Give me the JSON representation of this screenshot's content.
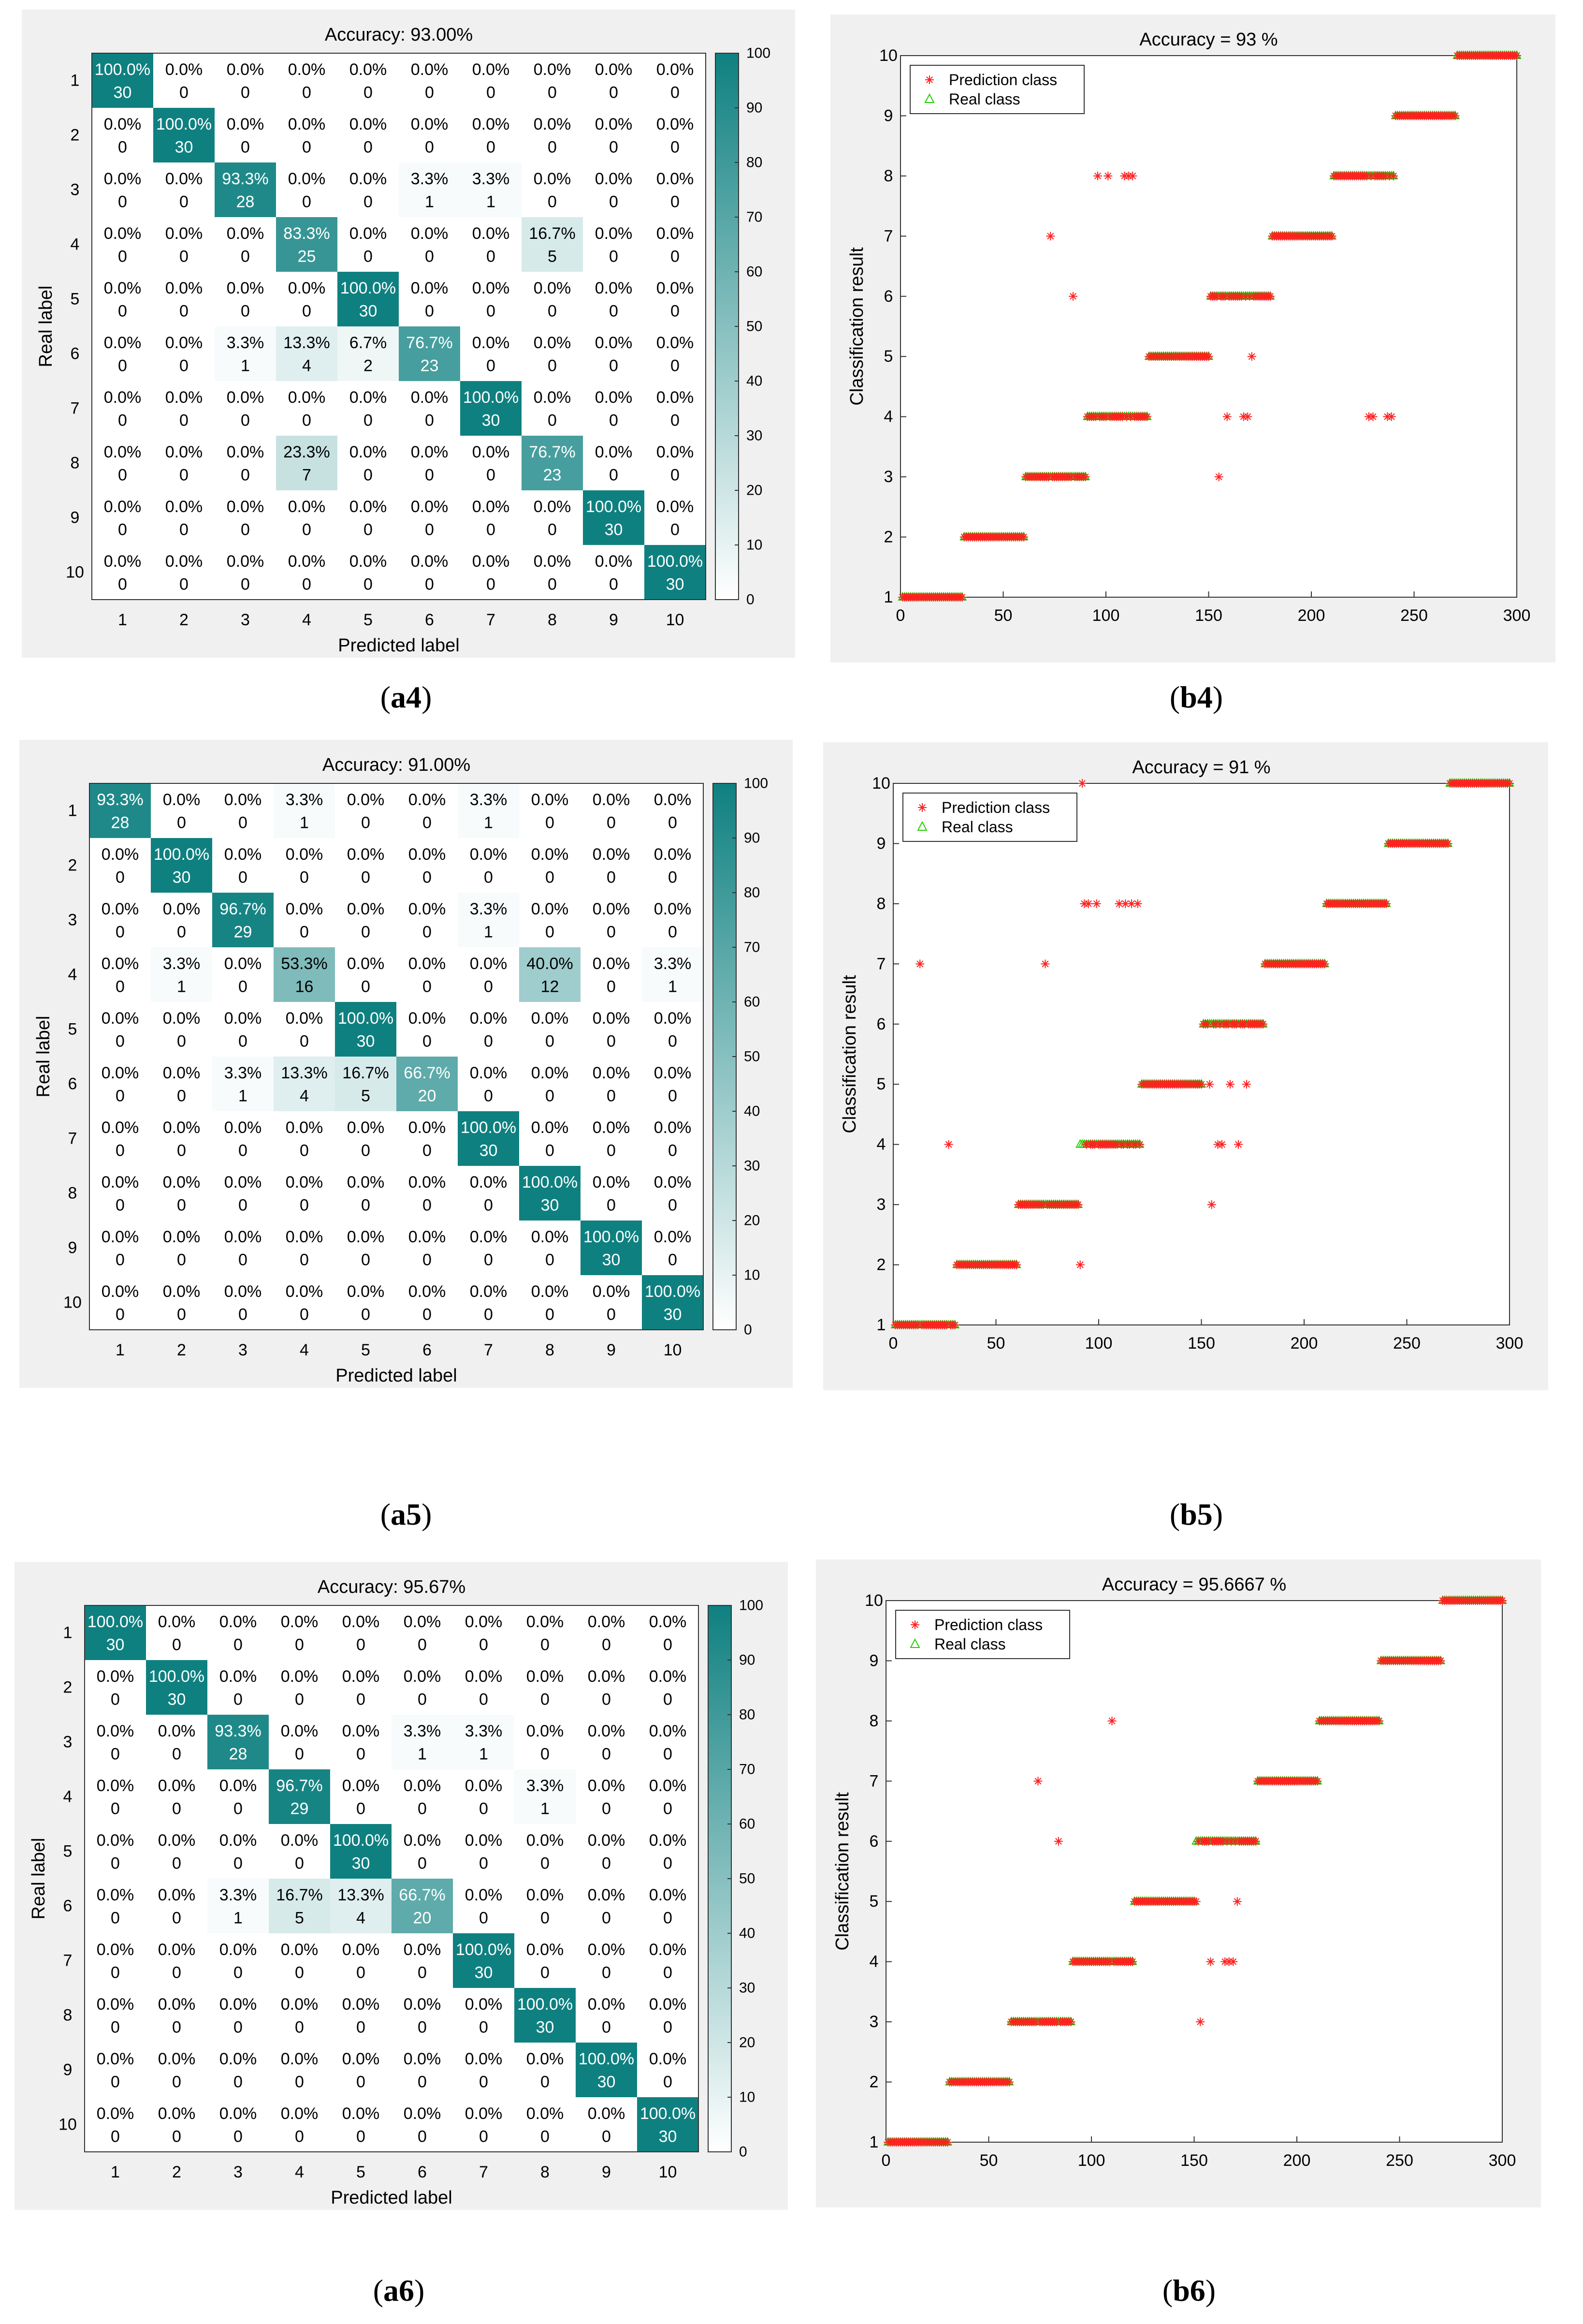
{
  "colors": {
    "cm_max": "#0f8080",
    "cm_min": "#ffffff",
    "panel_bg": "#f0f0f0",
    "pred": "#ff2020",
    "real": "#22cc00"
  },
  "common": {
    "cm_class_labels": [
      "1",
      "2",
      "3",
      "4",
      "5",
      "6",
      "7",
      "8",
      "9",
      "10"
    ],
    "cm_xlabel": "Predicted label",
    "cm_ylabel": "Real label",
    "cm_colorbar_ticks": [
      0,
      10,
      20,
      30,
      40,
      50,
      60,
      70,
      80,
      90,
      100
    ],
    "sc_ylabel": "Classification result",
    "sc_xticks": [
      0,
      50,
      100,
      150,
      200,
      250,
      300
    ],
    "sc_yticks": [
      1,
      2,
      3,
      4,
      5,
      6,
      7,
      8,
      9,
      10
    ],
    "sc_legend": [
      "Prediction class",
      "Real class"
    ]
  },
  "chart_data": [
    {
      "id": "a4",
      "type": "heatmap",
      "caption": "a4",
      "title": "Accuracy: 93.00%",
      "xlabel": "Predicted label",
      "ylabel": "Real label",
      "clim": [
        0,
        100
      ],
      "counts": [
        [
          30,
          0,
          0,
          0,
          0,
          0,
          0,
          0,
          0,
          0
        ],
        [
          0,
          30,
          0,
          0,
          0,
          0,
          0,
          0,
          0,
          0
        ],
        [
          0,
          0,
          28,
          0,
          0,
          1,
          1,
          0,
          0,
          0
        ],
        [
          0,
          0,
          0,
          25,
          0,
          0,
          0,
          5,
          0,
          0
        ],
        [
          0,
          0,
          0,
          0,
          30,
          0,
          0,
          0,
          0,
          0
        ],
        [
          0,
          0,
          1,
          4,
          2,
          23,
          0,
          0,
          0,
          0
        ],
        [
          0,
          0,
          0,
          0,
          0,
          0,
          30,
          0,
          0,
          0
        ],
        [
          0,
          0,
          0,
          7,
          0,
          0,
          0,
          23,
          0,
          0
        ],
        [
          0,
          0,
          0,
          0,
          0,
          0,
          0,
          0,
          30,
          0
        ],
        [
          0,
          0,
          0,
          0,
          0,
          0,
          0,
          0,
          0,
          30
        ]
      ],
      "percents": [
        [
          "100.0%",
          "0.0%",
          "0.0%",
          "0.0%",
          "0.0%",
          "0.0%",
          "0.0%",
          "0.0%",
          "0.0%",
          "0.0%"
        ],
        [
          "0.0%",
          "100.0%",
          "0.0%",
          "0.0%",
          "0.0%",
          "0.0%",
          "0.0%",
          "0.0%",
          "0.0%",
          "0.0%"
        ],
        [
          "0.0%",
          "0.0%",
          "93.3%",
          "0.0%",
          "0.0%",
          "3.3%",
          "3.3%",
          "0.0%",
          "0.0%",
          "0.0%"
        ],
        [
          "0.0%",
          "0.0%",
          "0.0%",
          "83.3%",
          "0.0%",
          "0.0%",
          "0.0%",
          "16.7%",
          "0.0%",
          "0.0%"
        ],
        [
          "0.0%",
          "0.0%",
          "0.0%",
          "0.0%",
          "100.0%",
          "0.0%",
          "0.0%",
          "0.0%",
          "0.0%",
          "0.0%"
        ],
        [
          "0.0%",
          "0.0%",
          "3.3%",
          "13.3%",
          "6.7%",
          "76.7%",
          "0.0%",
          "0.0%",
          "0.0%",
          "0.0%"
        ],
        [
          "0.0%",
          "0.0%",
          "0.0%",
          "0.0%",
          "0.0%",
          "0.0%",
          "100.0%",
          "0.0%",
          "0.0%",
          "0.0%"
        ],
        [
          "0.0%",
          "0.0%",
          "0.0%",
          "23.3%",
          "0.0%",
          "0.0%",
          "0.0%",
          "76.7%",
          "0.0%",
          "0.0%"
        ],
        [
          "0.0%",
          "0.0%",
          "0.0%",
          "0.0%",
          "0.0%",
          "0.0%",
          "0.0%",
          "0.0%",
          "100.0%",
          "0.0%"
        ],
        [
          "0.0%",
          "0.0%",
          "0.0%",
          "0.0%",
          "0.0%",
          "0.0%",
          "0.0%",
          "0.0%",
          "0.0%",
          "100.0%"
        ]
      ]
    },
    {
      "id": "b4",
      "type": "scatter",
      "caption": "b4",
      "title": "Accuracy  = 93 %",
      "xlabel": "",
      "ylabel": "Classification result",
      "xlim": [
        0,
        300
      ],
      "ylim": [
        1,
        10
      ],
      "series": [
        {
          "name": "Prediction class",
          "marker": "asterisk",
          "points": [
            [
              73,
              7
            ],
            [
              84,
              6
            ],
            [
              96,
              8
            ],
            [
              101,
              8
            ],
            [
              109,
              8
            ],
            [
              111,
              8
            ],
            [
              113,
              8
            ],
            [
              155,
              3
            ],
            [
              159,
              4
            ],
            [
              167,
              4
            ],
            [
              169,
              4
            ],
            [
              171,
              5
            ],
            [
              228,
              4
            ],
            [
              230,
              4
            ],
            [
              237,
              4
            ],
            [
              239,
              4
            ]
          ]
        },
        {
          "name": "Real class",
          "marker": "triangle",
          "segments": [
            [
              1,
              30,
              1
            ],
            [
              31,
              60,
              2
            ],
            [
              61,
              90,
              3
            ],
            [
              91,
              120,
              4
            ],
            [
              121,
              150,
              5
            ],
            [
              151,
              180,
              6
            ],
            [
              181,
              210,
              7
            ],
            [
              211,
              240,
              8
            ],
            [
              241,
              270,
              9
            ],
            [
              271,
              300,
              10
            ]
          ]
        }
      ]
    },
    {
      "id": "a5",
      "type": "heatmap",
      "caption": "a5",
      "title": "Accuracy: 91.00%",
      "xlabel": "Predicted label",
      "ylabel": "Real label",
      "clim": [
        0,
        100
      ],
      "counts": [
        [
          28,
          0,
          0,
          1,
          0,
          0,
          1,
          0,
          0,
          0
        ],
        [
          0,
          30,
          0,
          0,
          0,
          0,
          0,
          0,
          0,
          0
        ],
        [
          0,
          0,
          29,
          0,
          0,
          0,
          1,
          0,
          0,
          0
        ],
        [
          0,
          1,
          0,
          16,
          0,
          0,
          0,
          12,
          0,
          1
        ],
        [
          0,
          0,
          0,
          0,
          30,
          0,
          0,
          0,
          0,
          0
        ],
        [
          0,
          0,
          1,
          4,
          5,
          20,
          0,
          0,
          0,
          0
        ],
        [
          0,
          0,
          0,
          0,
          0,
          0,
          30,
          0,
          0,
          0
        ],
        [
          0,
          0,
          0,
          0,
          0,
          0,
          0,
          30,
          0,
          0
        ],
        [
          0,
          0,
          0,
          0,
          0,
          0,
          0,
          0,
          30,
          0
        ],
        [
          0,
          0,
          0,
          0,
          0,
          0,
          0,
          0,
          0,
          30
        ]
      ],
      "percents": [
        [
          "93.3%",
          "0.0%",
          "0.0%",
          "3.3%",
          "0.0%",
          "0.0%",
          "3.3%",
          "0.0%",
          "0.0%",
          "0.0%"
        ],
        [
          "0.0%",
          "100.0%",
          "0.0%",
          "0.0%",
          "0.0%",
          "0.0%",
          "0.0%",
          "0.0%",
          "0.0%",
          "0.0%"
        ],
        [
          "0.0%",
          "0.0%",
          "96.7%",
          "0.0%",
          "0.0%",
          "0.0%",
          "3.3%",
          "0.0%",
          "0.0%",
          "0.0%"
        ],
        [
          "0.0%",
          "3.3%",
          "0.0%",
          "53.3%",
          "0.0%",
          "0.0%",
          "0.0%",
          "40.0%",
          "0.0%",
          "3.3%"
        ],
        [
          "0.0%",
          "0.0%",
          "0.0%",
          "0.0%",
          "100.0%",
          "0.0%",
          "0.0%",
          "0.0%",
          "0.0%",
          "0.0%"
        ],
        [
          "0.0%",
          "0.0%",
          "3.3%",
          "13.3%",
          "16.7%",
          "66.7%",
          "0.0%",
          "0.0%",
          "0.0%",
          "0.0%"
        ],
        [
          "0.0%",
          "0.0%",
          "0.0%",
          "0.0%",
          "0.0%",
          "0.0%",
          "100.0%",
          "0.0%",
          "0.0%",
          "0.0%"
        ],
        [
          "0.0%",
          "0.0%",
          "0.0%",
          "0.0%",
          "0.0%",
          "0.0%",
          "0.0%",
          "100.0%",
          "0.0%",
          "0.0%"
        ],
        [
          "0.0%",
          "0.0%",
          "0.0%",
          "0.0%",
          "0.0%",
          "0.0%",
          "0.0%",
          "0.0%",
          "100.0%",
          "0.0%"
        ],
        [
          "0.0%",
          "0.0%",
          "0.0%",
          "0.0%",
          "0.0%",
          "0.0%",
          "0.0%",
          "0.0%",
          "0.0%",
          "100.0%"
        ]
      ]
    },
    {
      "id": "b5",
      "type": "scatter",
      "caption": "b5",
      "title": "Accuracy  = 91 %",
      "xlabel": "",
      "ylabel": "Classification result",
      "xlim": [
        0,
        300
      ],
      "ylim": [
        1,
        10
      ],
      "series": [
        {
          "name": "Prediction class",
          "marker": "asterisk",
          "points": [
            [
              13,
              7
            ],
            [
              27,
              4
            ],
            [
              74,
              7
            ],
            [
              91,
              2
            ],
            [
              92,
              10
            ],
            [
              93,
              8
            ],
            [
              95,
              8
            ],
            [
              99,
              8
            ],
            [
              110,
              8
            ],
            [
              113,
              8
            ],
            [
              116,
              8
            ],
            [
              119,
              8
            ],
            [
              154,
              5
            ],
            [
              155,
              3
            ],
            [
              158,
              4
            ],
            [
              160,
              4
            ],
            [
              164,
              5
            ],
            [
              168,
              4
            ],
            [
              172,
              5
            ]
          ]
        },
        {
          "name": "Real class",
          "marker": "triangle",
          "segments": [
            [
              1,
              30,
              1
            ],
            [
              31,
              60,
              2
            ],
            [
              61,
              90,
              3
            ],
            [
              91,
              120,
              4
            ],
            [
              121,
              150,
              5
            ],
            [
              151,
              180,
              6
            ],
            [
              181,
              210,
              7
            ],
            [
              211,
              240,
              8
            ],
            [
              241,
              270,
              9
            ],
            [
              271,
              300,
              10
            ]
          ]
        }
      ]
    },
    {
      "id": "a6",
      "type": "heatmap",
      "caption": "a6",
      "title": "Accuracy: 95.67%",
      "xlabel": "Predicted label",
      "ylabel": "Real label",
      "clim": [
        0,
        100
      ],
      "counts": [
        [
          30,
          0,
          0,
          0,
          0,
          0,
          0,
          0,
          0,
          0
        ],
        [
          0,
          30,
          0,
          0,
          0,
          0,
          0,
          0,
          0,
          0
        ],
        [
          0,
          0,
          28,
          0,
          0,
          1,
          1,
          0,
          0,
          0
        ],
        [
          0,
          0,
          0,
          29,
          0,
          0,
          0,
          1,
          0,
          0
        ],
        [
          0,
          0,
          0,
          0,
          30,
          0,
          0,
          0,
          0,
          0
        ],
        [
          0,
          0,
          1,
          5,
          4,
          20,
          0,
          0,
          0,
          0
        ],
        [
          0,
          0,
          0,
          0,
          0,
          0,
          30,
          0,
          0,
          0
        ],
        [
          0,
          0,
          0,
          0,
          0,
          0,
          0,
          30,
          0,
          0
        ],
        [
          0,
          0,
          0,
          0,
          0,
          0,
          0,
          0,
          30,
          0
        ],
        [
          0,
          0,
          0,
          0,
          0,
          0,
          0,
          0,
          0,
          30
        ]
      ],
      "percents": [
        [
          "100.0%",
          "0.0%",
          "0.0%",
          "0.0%",
          "0.0%",
          "0.0%",
          "0.0%",
          "0.0%",
          "0.0%",
          "0.0%"
        ],
        [
          "0.0%",
          "100.0%",
          "0.0%",
          "0.0%",
          "0.0%",
          "0.0%",
          "0.0%",
          "0.0%",
          "0.0%",
          "0.0%"
        ],
        [
          "0.0%",
          "0.0%",
          "93.3%",
          "0.0%",
          "0.0%",
          "3.3%",
          "3.3%",
          "0.0%",
          "0.0%",
          "0.0%"
        ],
        [
          "0.0%",
          "0.0%",
          "0.0%",
          "96.7%",
          "0.0%",
          "0.0%",
          "0.0%",
          "3.3%",
          "0.0%",
          "0.0%"
        ],
        [
          "0.0%",
          "0.0%",
          "0.0%",
          "0.0%",
          "100.0%",
          "0.0%",
          "0.0%",
          "0.0%",
          "0.0%",
          "0.0%"
        ],
        [
          "0.0%",
          "0.0%",
          "3.3%",
          "16.7%",
          "13.3%",
          "66.7%",
          "0.0%",
          "0.0%",
          "0.0%",
          "0.0%"
        ],
        [
          "0.0%",
          "0.0%",
          "0.0%",
          "0.0%",
          "0.0%",
          "0.0%",
          "100.0%",
          "0.0%",
          "0.0%",
          "0.0%"
        ],
        [
          "0.0%",
          "0.0%",
          "0.0%",
          "0.0%",
          "0.0%",
          "0.0%",
          "0.0%",
          "100.0%",
          "0.0%",
          "0.0%"
        ],
        [
          "0.0%",
          "0.0%",
          "0.0%",
          "0.0%",
          "0.0%",
          "0.0%",
          "0.0%",
          "0.0%",
          "100.0%",
          "0.0%"
        ],
        [
          "0.0%",
          "0.0%",
          "0.0%",
          "0.0%",
          "0.0%",
          "0.0%",
          "0.0%",
          "0.0%",
          "0.0%",
          "100.0%"
        ]
      ]
    },
    {
      "id": "b6",
      "type": "scatter",
      "caption": "b6",
      "title": "Accuracy  = 95.6667 %",
      "xlabel": "",
      "ylabel": "Classification result",
      "xlim": [
        0,
        300
      ],
      "ylim": [
        1,
        10
      ],
      "series": [
        {
          "name": "Prediction class",
          "marker": "asterisk",
          "points": [
            [
              74,
              7
            ],
            [
              84,
              6
            ],
            [
              110,
              8
            ],
            [
              151,
              5
            ],
            [
              153,
              3
            ],
            [
              158,
              4
            ],
            [
              165,
              4
            ],
            [
              167,
              4
            ],
            [
              169,
              4
            ],
            [
              171,
              5
            ]
          ]
        },
        {
          "name": "Real class",
          "marker": "triangle",
          "segments": [
            [
              1,
              30,
              1
            ],
            [
              31,
              60,
              2
            ],
            [
              61,
              90,
              3
            ],
            [
              91,
              120,
              4
            ],
            [
              121,
              150,
              5
            ],
            [
              151,
              180,
              6
            ],
            [
              181,
              210,
              7
            ],
            [
              211,
              240,
              8
            ],
            [
              241,
              270,
              9
            ],
            [
              271,
              300,
              10
            ]
          ]
        }
      ]
    }
  ]
}
